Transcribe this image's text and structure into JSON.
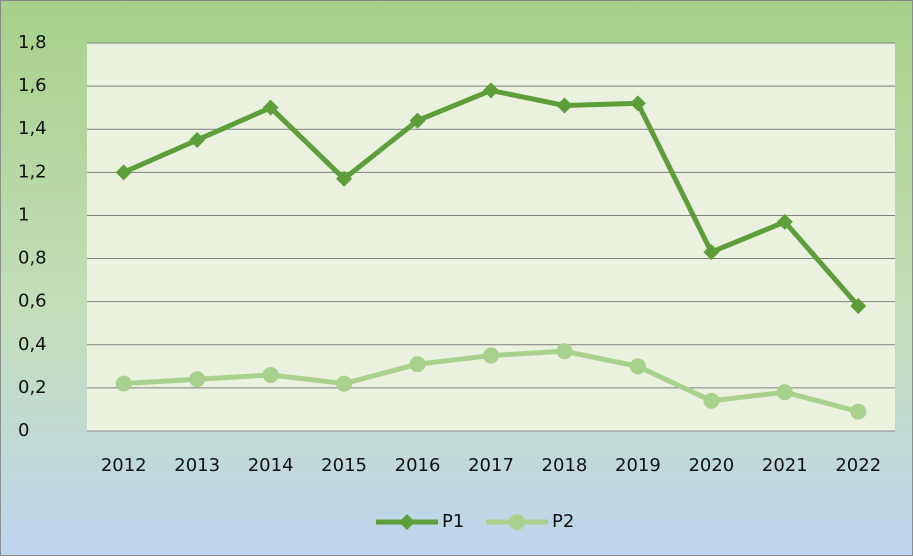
{
  "chart_data": {
    "type": "line",
    "categories": [
      "2012",
      "2013",
      "2014",
      "2015",
      "2016",
      "2017",
      "2018",
      "2019",
      "2020",
      "2021",
      "2022"
    ],
    "series": [
      {
        "name": "P1",
        "color": "#5e9e3a",
        "marker": "diamond",
        "values": [
          1.2,
          1.35,
          1.5,
          1.17,
          1.44,
          1.58,
          1.51,
          1.52,
          0.83,
          0.97,
          0.58
        ]
      },
      {
        "name": "P2",
        "color": "#a9d18e",
        "marker": "circle",
        "values": [
          0.22,
          0.24,
          0.26,
          0.22,
          0.31,
          0.35,
          0.37,
          0.3,
          0.14,
          0.18,
          0.09
        ]
      }
    ],
    "ylim": [
      0,
      1.8
    ],
    "yticks": [
      0,
      {
        "value": 0.2,
        "label": "0,2"
      },
      {
        "value": 0.4,
        "label": "0,4"
      },
      {
        "value": 0.6,
        "label": "0,6"
      },
      {
        "value": 0.8,
        "label": "0,8"
      },
      1,
      {
        "value": 1.2,
        "label": "1,2"
      },
      {
        "value": 1.4,
        "label": "1,4"
      },
      {
        "value": 1.6,
        "label": "1,6"
      },
      {
        "value": 1.8,
        "label": "1,8"
      }
    ],
    "grid": true,
    "legend": "bottom"
  }
}
